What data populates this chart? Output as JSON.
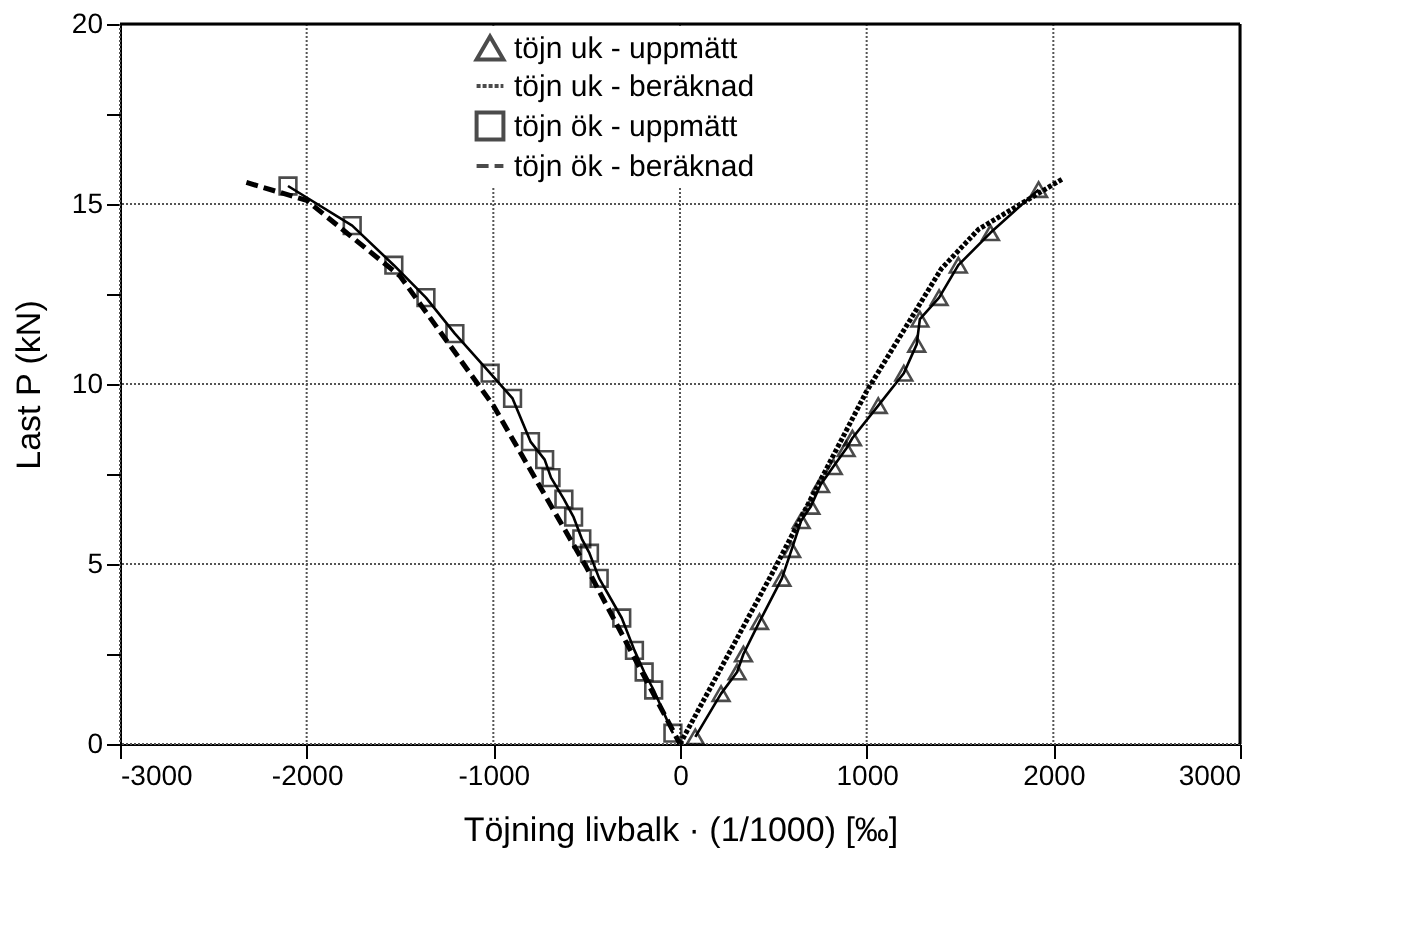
{
  "chart_data": {
    "type": "line",
    "xlabel": "Töjning livbalk · (1/1000) [‰]",
    "ylabel": "Last P (kN)",
    "xlim": [
      -3000,
      3000
    ],
    "xticks": [
      -3000,
      -2000,
      -1000,
      0,
      1000,
      2000,
      3000
    ],
    "ylim": [
      0,
      20
    ],
    "yticks": [
      0,
      {
        "value": 2.5,
        "label": null
      },
      5,
      {
        "value": 7.5,
        "label": null
      },
      10,
      {
        "value": 12.5,
        "label": null
      },
      15,
      {
        "value": 17.5,
        "label": null
      },
      20
    ],
    "grid": true,
    "legend": "top",
    "series": [
      {
        "name": "töjn uk - uppmätt",
        "color": "#000000",
        "marker": "triangle",
        "line_style": "solid",
        "x": [
          82,
          220,
          306,
          340,
          426,
          546,
          598,
          649,
          701,
          753,
          821,
          890,
          924,
          1062,
          1199,
          1268,
          1285,
          1388,
          1491,
          1663,
          1921
        ],
        "values": [
          0.2,
          1.4,
          2.0,
          2.5,
          3.4,
          4.6,
          5.4,
          6.2,
          6.6,
          7.2,
          7.7,
          8.2,
          8.5,
          9.4,
          10.3,
          11.1,
          11.8,
          12.4,
          13.3,
          14.2,
          15.4
        ]
      },
      {
        "name": "töjn uk - beräknad",
        "color": "#000000",
        "marker": "none",
        "line_style": "dotted",
        "x": [
          0,
          500,
          1000,
          1400,
          1600,
          2050
        ],
        "values": [
          0,
          4.8,
          9.8,
          13.2,
          14.3,
          15.7
        ]
      },
      {
        "name": "töjn ök - uppmätt",
        "color": "#000000",
        "marker": "square",
        "line_style": "solid",
        "x": [
          -2100,
          -1756,
          -1533,
          -1361,
          -1206,
          -1017,
          -897,
          -801,
          -725,
          -691,
          -622,
          -570,
          -526,
          -485,
          -433,
          -312,
          -244,
          -192,
          -141,
          -38
        ],
        "values": [
          15.5,
          14.4,
          13.3,
          12.4,
          11.4,
          10.3,
          9.6,
          8.4,
          7.9,
          7.4,
          6.8,
          6.3,
          5.7,
          5.3,
          4.6,
          3.5,
          2.6,
          2.0,
          1.5,
          0.3
        ]
      },
      {
        "name": "töjn ök - beräknad",
        "color": "#000000",
        "marker": "none",
        "line_style": "dashed",
        "x": [
          -2323,
          -2000,
          -1500,
          -1000,
          -500,
          0
        ],
        "values": [
          15.6,
          15.1,
          13.0,
          9.4,
          4.9,
          0
        ]
      }
    ]
  }
}
